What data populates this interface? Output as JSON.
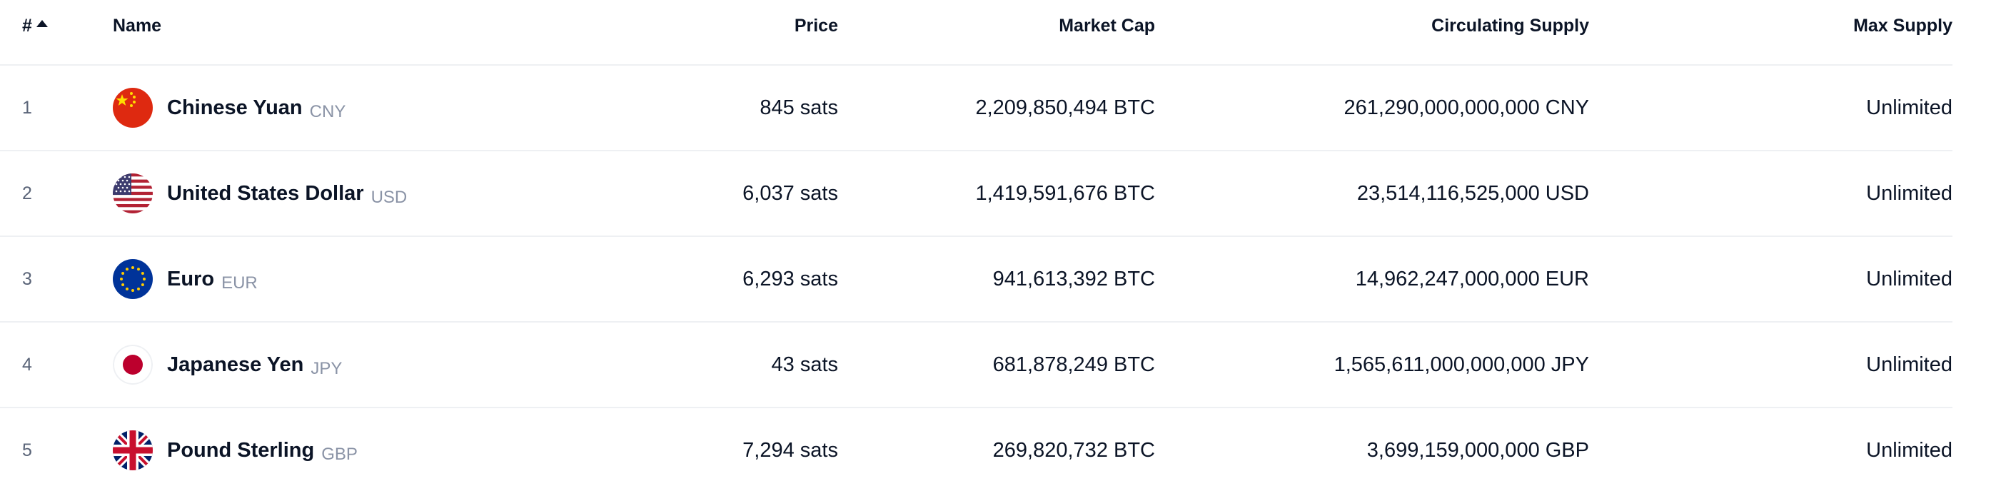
{
  "header": {
    "rank": "#",
    "name": "Name",
    "price": "Price",
    "market_cap": "Market Cap",
    "circulating_supply": "Circulating Supply",
    "max_supply": "Max Supply"
  },
  "rows": [
    {
      "rank": "1",
      "name": "Chinese Yuan",
      "code": "CNY",
      "price": "845 sats",
      "market_cap": "2,209,850,494 BTC",
      "circulating_supply": "261,290,000,000,000 CNY",
      "max_supply": "Unlimited",
      "flag_icon": "china-flag-icon"
    },
    {
      "rank": "2",
      "name": "United States Dollar",
      "code": "USD",
      "price": "6,037 sats",
      "market_cap": "1,419,591,676 BTC",
      "circulating_supply": "23,514,116,525,000 USD",
      "max_supply": "Unlimited",
      "flag_icon": "usa-flag-icon"
    },
    {
      "rank": "3",
      "name": "Euro",
      "code": "EUR",
      "price": "6,293 sats",
      "market_cap": "941,613,392 BTC",
      "circulating_supply": "14,962,247,000,000 EUR",
      "max_supply": "Unlimited",
      "flag_icon": "eu-flag-icon"
    },
    {
      "rank": "4",
      "name": "Japanese Yen",
      "code": "JPY",
      "price": "43 sats",
      "market_cap": "681,878,249 BTC",
      "circulating_supply": "1,565,611,000,000,000 JPY",
      "max_supply": "Unlimited",
      "flag_icon": "japan-flag-icon"
    },
    {
      "rank": "5",
      "name": "Pound Sterling",
      "code": "GBP",
      "price": "7,294 sats",
      "market_cap": "269,820,732 BTC",
      "circulating_supply": "3,699,159,000,000 GBP",
      "max_supply": "Unlimited",
      "flag_icon": "uk-flag-icon"
    }
  ],
  "colors": {
    "text": "#0b1426",
    "muted": "#8a93a6",
    "divider": "#eef0f3"
  }
}
